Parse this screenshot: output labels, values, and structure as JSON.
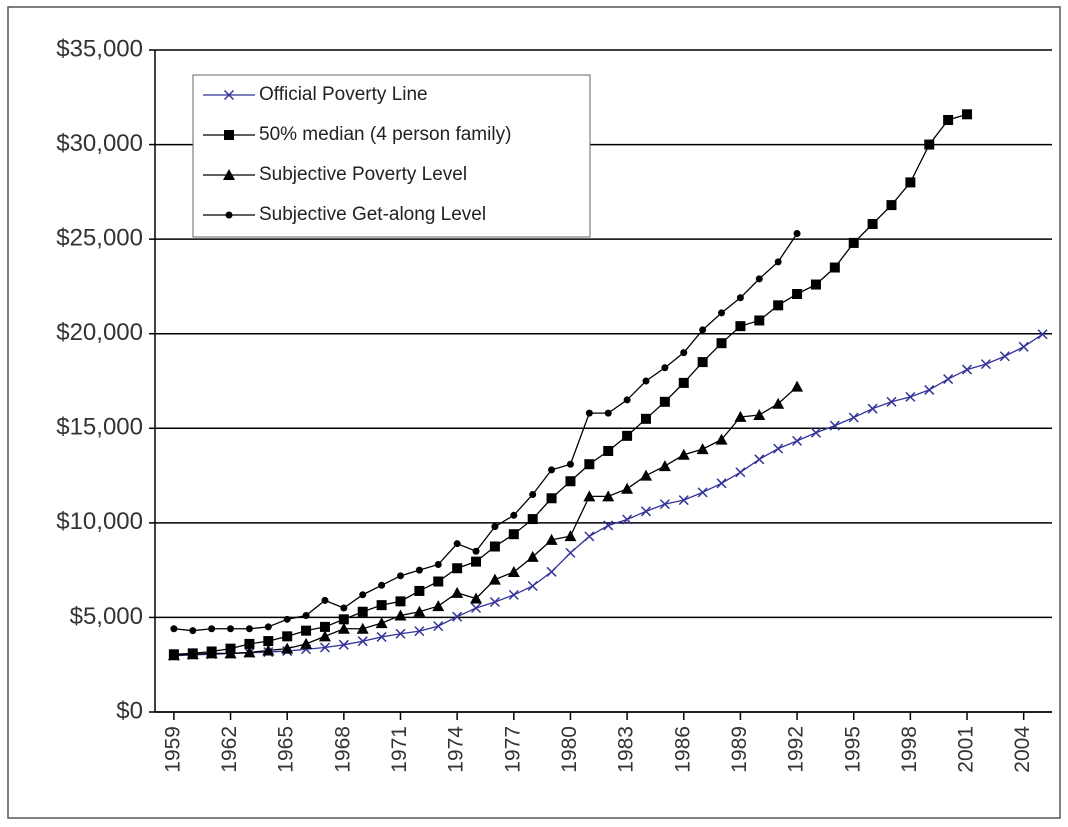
{
  "chart_data": {
    "type": "line",
    "x": [
      1959,
      1960,
      1961,
      1962,
      1963,
      1964,
      1965,
      1966,
      1967,
      1968,
      1969,
      1970,
      1971,
      1972,
      1973,
      1974,
      1975,
      1976,
      1977,
      1978,
      1979,
      1980,
      1981,
      1982,
      1983,
      1984,
      1985,
      1986,
      1987,
      1988,
      1989,
      1990,
      1991,
      1992,
      1993,
      1994,
      1995,
      1996,
      1997,
      1998,
      1999,
      2000,
      2001,
      2002,
      2003,
      2004,
      2005
    ],
    "xlim": [
      1958,
      2005.5
    ],
    "xticks": [
      1959,
      1962,
      1965,
      1968,
      1971,
      1974,
      1977,
      1980,
      1983,
      1986,
      1989,
      1992,
      1995,
      1998,
      2001,
      2004
    ],
    "ylim": [
      0,
      35000
    ],
    "yticks": [
      {
        "value": 0,
        "label": "$0"
      },
      {
        "value": 5000,
        "label": "$5,000"
      },
      {
        "value": 10000,
        "label": "$10,000"
      },
      {
        "value": 15000,
        "label": "$15,000"
      },
      {
        "value": 20000,
        "label": "$20,000"
      },
      {
        "value": 25000,
        "label": "$25,000"
      },
      {
        "value": 30000,
        "label": "$30,000"
      },
      {
        "value": 35000,
        "label": "$35,000"
      }
    ],
    "grid": true,
    "legend": "upper left",
    "series": [
      {
        "name": "Official Poverty Line",
        "color": "#333399",
        "marker": "x",
        "values": [
          2973,
          3022,
          3054,
          3089,
          3128,
          3169,
          3223,
          3317,
          3410,
          3553,
          3743,
          3968,
          4137,
          4275,
          4540,
          5038,
          5500,
          5815,
          6191,
          6662,
          7412,
          8414,
          9287,
          9862,
          10178,
          10609,
          10989,
          11203,
          11611,
          12092,
          12674,
          13359,
          13924,
          14335,
          14763,
          15141,
          15569,
          16036,
          16400,
          16660,
          17029,
          17603,
          18104,
          18392,
          18810,
          19307,
          19971
        ]
      },
      {
        "name": "50% median (4 person family)",
        "color": "#000000",
        "marker": "square",
        "values": [
          3050,
          3100,
          3200,
          3350,
          3600,
          3750,
          4000,
          4300,
          4500,
          4900,
          5300,
          5650,
          5850,
          6400,
          6900,
          7600,
          7950,
          8750,
          9400,
          10200,
          11300,
          12200,
          13100,
          13800,
          14600,
          15500,
          16400,
          17400,
          18500,
          19500,
          20400,
          20700,
          21500,
          22100,
          22600,
          23500,
          24800,
          25800,
          26800,
          28000,
          30000,
          31300,
          31600,
          null,
          null,
          null,
          null
        ]
      },
      {
        "name": "Subjective Poverty Level",
        "color": "#000000",
        "marker": "triangle",
        "values": [
          3000,
          3050,
          3100,
          3100,
          3150,
          3250,
          3350,
          3600,
          4000,
          4400,
          4400,
          4700,
          5100,
          5300,
          5600,
          6300,
          6000,
          7000,
          7400,
          8200,
          9100,
          9300,
          11400,
          11400,
          11800,
          12500,
          13000,
          13600,
          13900,
          14400,
          15600,
          15700,
          16300,
          17200,
          null,
          null,
          null,
          null,
          null,
          null,
          null,
          null,
          null,
          null,
          null,
          null,
          null
        ]
      },
      {
        "name": "Subjective Get-along Level",
        "color": "#000000",
        "marker": "circle",
        "values": [
          4400,
          4300,
          4400,
          4400,
          4400,
          4500,
          4900,
          5100,
          5900,
          5500,
          6200,
          6700,
          7200,
          7500,
          7800,
          8900,
          8500,
          9800,
          10400,
          11500,
          12800,
          13100,
          15800,
          15800,
          16500,
          17500,
          18200,
          19000,
          20200,
          21100,
          21900,
          22900,
          23800,
          25300,
          null,
          null,
          null,
          null,
          null,
          null,
          null,
          null,
          null,
          null,
          null,
          null,
          null
        ]
      }
    ]
  }
}
